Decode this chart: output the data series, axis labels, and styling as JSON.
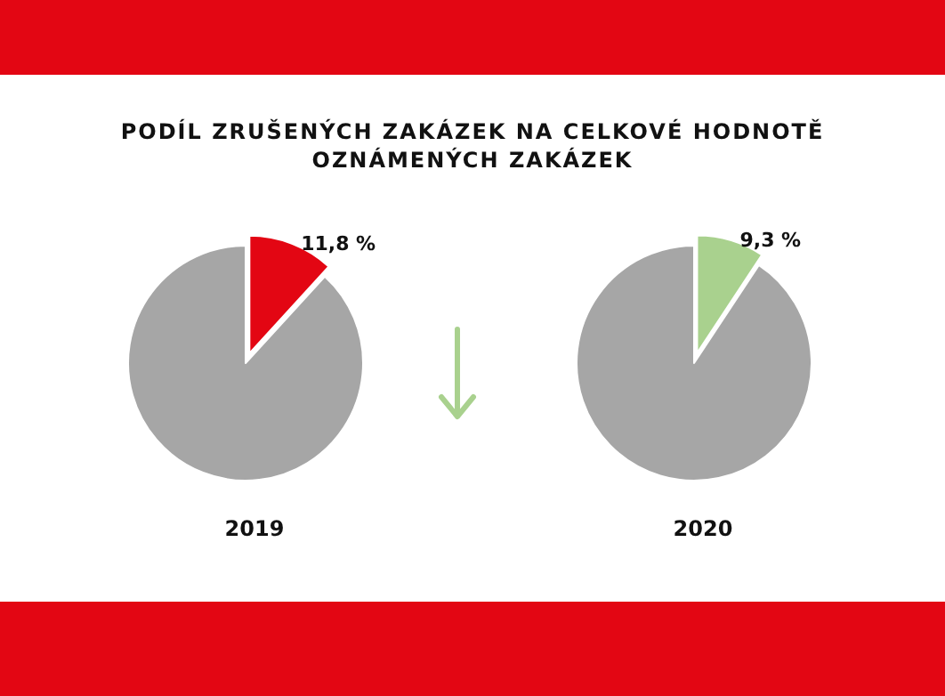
{
  "chart_data": [
    {
      "type": "pie",
      "title": "PODÍL ZRUŠENÝCH ZAKÁZEK NA CELKOVÉ HODNOTĚ OZNÁMENÝCH ZAKÁZEK",
      "xlabel": "2019",
      "categories": [
        null,
        null
      ],
      "values": [
        11.8,
        88.2
      ],
      "colors": [
        "#e30613",
        "#a6a6a6"
      ],
      "value_labels": [
        "11,8 %",
        null
      ]
    },
    {
      "type": "pie",
      "xlabel": "2020",
      "categories": [
        null,
        null
      ],
      "values": [
        9.3,
        90.7
      ],
      "colors": [
        "#a9d18e",
        "#a6a6a6"
      ],
      "value_labels": [
        "9,3 %",
        null
      ]
    }
  ]
}
